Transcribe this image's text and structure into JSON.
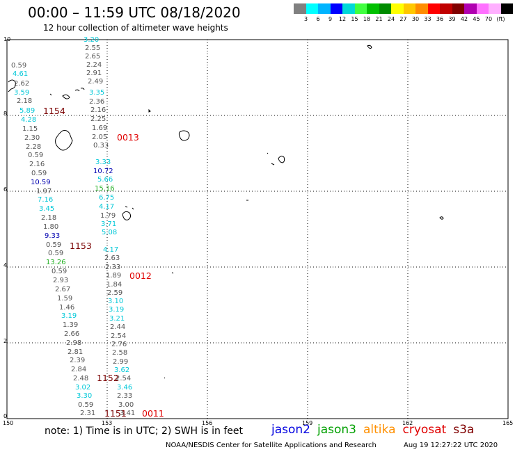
{
  "title": "00:00 – 11:59 UTC 08/18/2020",
  "subtitle": "12 hour collection of altimeter wave heights",
  "colorbar": {
    "colors": [
      "#808080",
      "#00ffff",
      "#00b4ff",
      "#0000ff",
      "#00d8d8",
      "#40ff40",
      "#00c000",
      "#008c00",
      "#ffff00",
      "#ffc800",
      "#ff8c00",
      "#ff0000",
      "#c00000",
      "#800000",
      "#b000b0",
      "#ff70ff",
      "#ffb0ff",
      "#000000"
    ],
    "labels": [
      "3",
      "6",
      "9",
      "12",
      "15",
      "18",
      "21",
      "24",
      "27",
      "30",
      "33",
      "36",
      "39",
      "42",
      "45",
      "70",
      "(ft)"
    ]
  },
  "axes": {
    "x_ticks": [
      "150",
      "153",
      "156",
      "159",
      "162",
      "165"
    ],
    "y_ticks": [
      "0",
      "2",
      "4",
      "6",
      "8",
      "10"
    ]
  },
  "values": [
    {
      "t": "3.20",
      "c": "c"
    },
    {
      "t": "2.55",
      "c": "g"
    },
    {
      "t": "2.65",
      "c": "g"
    },
    {
      "t": "2.24",
      "c": "g"
    },
    {
      "t": "2.91",
      "c": "g"
    },
    {
      "t": "2.49",
      "c": "g"
    },
    {
      "t": "3.35",
      "c": "c"
    },
    {
      "t": "2.36",
      "c": "g"
    },
    {
      "t": "2.16",
      "c": "g"
    },
    {
      "t": "2.25",
      "c": "g"
    },
    {
      "t": "1.69",
      "c": "g"
    },
    {
      "t": "2.05",
      "c": "g"
    },
    {
      "t": "0.33",
      "c": "g"
    },
    {
      "t": "0.59",
      "c": "g"
    },
    {
      "t": "4.61",
      "c": "c"
    },
    {
      "t": "2.62",
      "c": "g"
    },
    {
      "t": "3.59",
      "c": "c"
    },
    {
      "t": "2.18",
      "c": "g"
    },
    {
      "t": "5.89",
      "c": "c"
    },
    {
      "t": "4.28",
      "c": "c"
    },
    {
      "t": "1.15",
      "c": "g"
    },
    {
      "t": "2.30",
      "c": "g"
    },
    {
      "t": "2.28",
      "c": "g"
    },
    {
      "t": "0.59",
      "c": "g"
    },
    {
      "t": "2.16",
      "c": "g"
    },
    {
      "t": "0.59",
      "c": "g"
    },
    {
      "t": "10.59",
      "c": "b"
    },
    {
      "t": "1.97",
      "c": "g"
    },
    {
      "t": "7.16",
      "c": "c"
    },
    {
      "t": "3.45",
      "c": "c"
    },
    {
      "t": "2.18",
      "c": "g"
    },
    {
      "t": "1.80",
      "c": "g"
    },
    {
      "t": "9.33",
      "c": "b"
    },
    {
      "t": "0.59",
      "c": "g"
    },
    {
      "t": "0.59",
      "c": "g"
    },
    {
      "t": "13.26",
      "c": "gr"
    },
    {
      "t": "3.33",
      "c": "c"
    },
    {
      "t": "10.72",
      "c": "b"
    },
    {
      "t": "5.66",
      "c": "c"
    },
    {
      "t": "15.16",
      "c": "gr"
    },
    {
      "t": "6.75",
      "c": "c"
    },
    {
      "t": "4.17",
      "c": "c"
    },
    {
      "t": "1.79",
      "c": "g"
    },
    {
      "t": "3.71",
      "c": "c"
    },
    {
      "t": "5.08",
      "c": "c"
    },
    {
      "t": "0.59",
      "c": "g"
    },
    {
      "t": "2.93",
      "c": "g"
    },
    {
      "t": "2.67",
      "c": "g"
    },
    {
      "t": "1.59",
      "c": "g"
    },
    {
      "t": "1.46",
      "c": "g"
    },
    {
      "t": "3.19",
      "c": "c"
    },
    {
      "t": "1.39",
      "c": "g"
    },
    {
      "t": "2.66",
      "c": "g"
    },
    {
      "t": "2.98",
      "c": "g"
    },
    {
      "t": "2.81",
      "c": "g"
    },
    {
      "t": "2.39",
      "c": "g"
    },
    {
      "t": "2.84",
      "c": "g"
    },
    {
      "t": "2.48",
      "c": "g"
    },
    {
      "t": "3.02",
      "c": "c"
    },
    {
      "t": "3.30",
      "c": "c"
    },
    {
      "t": "0.59",
      "c": "g"
    },
    {
      "t": "2.31",
      "c": "g"
    },
    {
      "t": "4.17",
      "c": "c"
    },
    {
      "t": "2.63",
      "c": "g"
    },
    {
      "t": "2.33",
      "c": "g"
    },
    {
      "t": "1.89",
      "c": "g"
    },
    {
      "t": "1.84",
      "c": "g"
    },
    {
      "t": "2.59",
      "c": "g"
    },
    {
      "t": "3.10",
      "c": "c"
    },
    {
      "t": "3.19",
      "c": "c"
    },
    {
      "t": "3.21",
      "c": "c"
    },
    {
      "t": "2.44",
      "c": "g"
    },
    {
      "t": "2.54",
      "c": "g"
    },
    {
      "t": "2.76",
      "c": "g"
    },
    {
      "t": "2.58",
      "c": "g"
    },
    {
      "t": "2.99",
      "c": "g"
    },
    {
      "t": "3.62",
      "c": "c"
    },
    {
      "t": "2.54",
      "c": "g"
    },
    {
      "t": "3.46",
      "c": "c"
    },
    {
      "t": "2.33",
      "c": "g"
    },
    {
      "t": "3.00",
      "c": "g"
    },
    {
      "t": "3.41",
      "c": "g"
    }
  ],
  "pass_labels": [
    {
      "t": "1154",
      "c": "pk"
    },
    {
      "t": "0013",
      "c": "pr"
    },
    {
      "t": "1153",
      "c": "pk"
    },
    {
      "t": "0012",
      "c": "pr"
    },
    {
      "t": "1152",
      "c": "pk"
    },
    {
      "t": "1151",
      "c": "pk"
    },
    {
      "t": "0011",
      "c": "pr"
    }
  ],
  "note": "note: 1) Time is in UTC; 2) SWH is in feet",
  "legend": [
    {
      "label": "jason2",
      "color": "#0000e0"
    },
    {
      "label": "jason3",
      "color": "#00a000"
    },
    {
      "label": "altika",
      "color": "#ff9000"
    },
    {
      "label": "cryosat",
      "color": "#e00000"
    },
    {
      "label": "s3a",
      "color": "#800000"
    }
  ],
  "footer": "NOAA/NESDIS Center for Satellite Applications and Research",
  "timestamp": "Aug 19 12:27:22 UTC 2020"
}
